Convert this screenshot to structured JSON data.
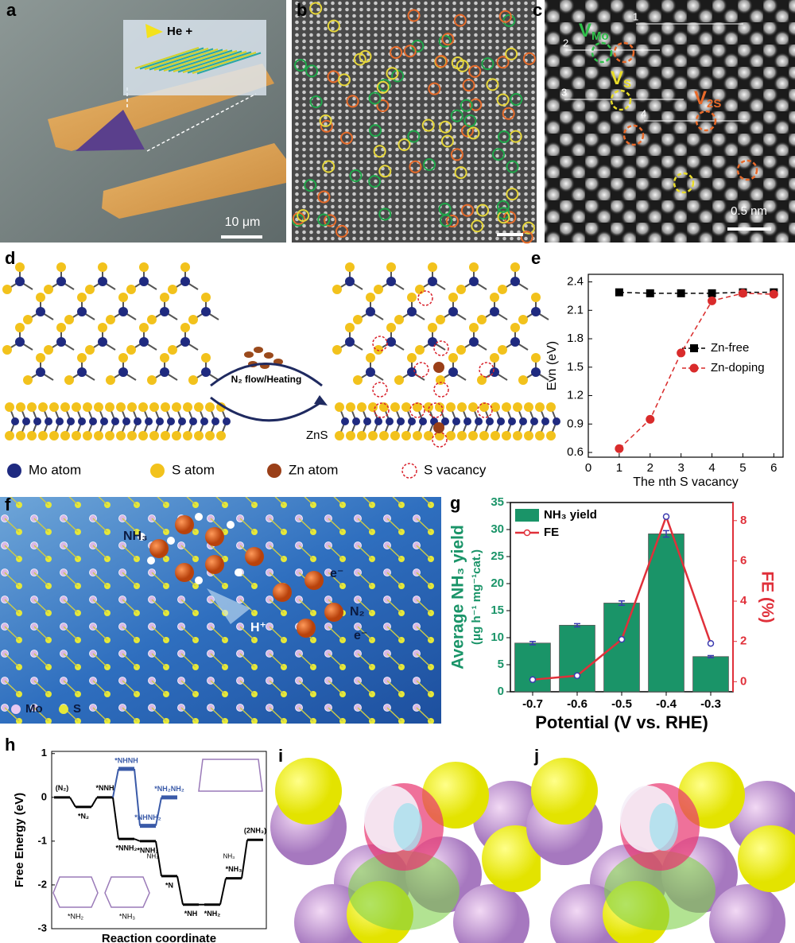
{
  "panels": {
    "a": {
      "label": "a",
      "beam": "He +",
      "scale": "10 μm"
    },
    "b": {
      "label": "b"
    },
    "c": {
      "label": "c",
      "lines": [
        "1",
        "2",
        "3",
        "4"
      ],
      "vacancies": [
        {
          "symbol": "V",
          "sub": "Mo"
        },
        {
          "symbol": "V",
          "sub": "S"
        },
        {
          "symbol": "V",
          "sub": "2S"
        }
      ],
      "scale": "0.5 nm"
    },
    "d": {
      "label": "d",
      "process": "N₂ flow/Heating",
      "product": "ZnS",
      "legend": [
        "Mo atom",
        "S atom",
        "Zn atom",
        "S vacancy"
      ]
    },
    "f": {
      "label": "f",
      "molecules": [
        "NH₃",
        "N₂",
        "H⁺",
        "e⁻",
        "e⁻"
      ],
      "legend": [
        "Mo",
        "S"
      ]
    },
    "i": {
      "label": "i"
    },
    "j": {
      "label": "j"
    }
  },
  "chart_data": [
    {
      "type": "line",
      "panel": "e",
      "y_label": "Evn (eV)",
      "x_label": "The nth S vacancy",
      "x": [
        1,
        2,
        3,
        4,
        5,
        6
      ],
      "xlim": [
        0,
        6.3
      ],
      "xticks": [
        0,
        1,
        2,
        3,
        4,
        5,
        6
      ],
      "ylim": [
        0.55,
        2.48
      ],
      "yticks": [
        0.6,
        0.9,
        1.2,
        1.5,
        1.8,
        2.1,
        2.4
      ],
      "legend": "center right",
      "series": [
        {
          "name": "Zn-free",
          "color": "#000000",
          "marker": "square",
          "values": [
            2.29,
            2.28,
            2.28,
            2.28,
            2.29,
            2.29
          ]
        },
        {
          "name": "Zn-doping",
          "color": "#d92b2b",
          "marker": "circle",
          "values": [
            0.64,
            0.95,
            1.65,
            2.2,
            2.28,
            2.27
          ]
        }
      ]
    },
    {
      "type": "bar",
      "panel": "g",
      "y_label": [
        "Average NH₃ yield",
        "(μg h⁻¹ mg⁻¹cat.)"
      ],
      "y2_label": "FE (%)",
      "x_label": "Potential (V vs. RHE)",
      "categories": [
        "-0.7",
        "-0.6",
        "-0.5",
        "-0.4",
        "-0.3"
      ],
      "ylim": [
        0,
        35
      ],
      "yticks": [
        0,
        5,
        10,
        15,
        20,
        25,
        30,
        35
      ],
      "y2lim": [
        -0.5,
        8.9
      ],
      "y2ticks": [
        0,
        2,
        4,
        6,
        8
      ],
      "legend": "upper left",
      "series": [
        {
          "name": "NH₃ yield",
          "color": "#1a9468",
          "values": [
            9.0,
            12.3,
            16.4,
            29.2,
            6.5
          ],
          "errors": [
            0.3,
            0.3,
            0.4,
            0.6,
            0.2
          ]
        },
        {
          "name": "FE",
          "color": "#e0303a",
          "axis": "y2",
          "values": [
            0.1,
            0.3,
            2.1,
            8.2,
            1.9
          ]
        }
      ]
    },
    {
      "type": "energy",
      "panel": "h",
      "y_label": "Free Energy (eV)",
      "x_label": "Reaction coordinate",
      "ylim": [
        -3,
        1.05
      ],
      "yticks": [
        1,
        0,
        -1,
        -2,
        -3
      ],
      "series": [
        {
          "color": "#000000",
          "labels": [
            "(N₂)",
            "*N₂",
            "*NNH",
            "*NNH₂",
            "*NNH₃",
            "*N",
            "*NH",
            "*NH₂",
            "*NH₃",
            "(2NH₃)"
          ],
          "values": [
            0,
            -0.22,
            0,
            -0.95,
            -1.0,
            -1.8,
            -2.45,
            -2.45,
            -1.85,
            -0.97
          ]
        },
        {
          "color": "#3a5aa8",
          "labels": [
            null,
            null,
            null,
            "*NHNH",
            "*NHNH₂",
            "*NH₂NH₂",
            null,
            null,
            null,
            null
          ],
          "values": [
            null,
            null,
            null,
            0.65,
            -0.65,
            0,
            null,
            null,
            null,
            null
          ]
        }
      ],
      "annotations": [
        "NH₃",
        "NH₃"
      ],
      "inset_labels": [
        "*NH₂",
        "*NH₃"
      ]
    }
  ]
}
